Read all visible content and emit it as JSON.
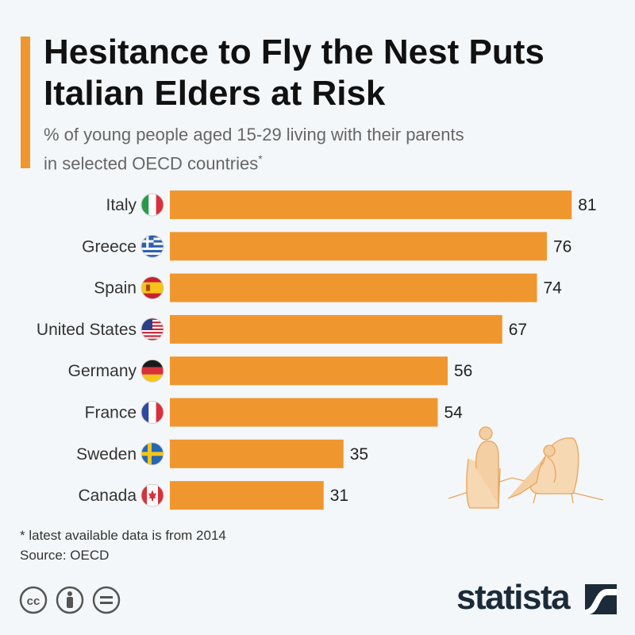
{
  "header": {
    "title_line1": "Hesitance to Fly the Nest Puts",
    "title_line2": "Italian Elders at Risk",
    "subtitle_line1": "% of young people aged 15-29 living with their parents",
    "subtitle_line2": "in selected OECD countries",
    "subtitle_mark": "*"
  },
  "footer": {
    "note": "* latest available data is from 2014",
    "source": "Source: OECD",
    "brand": "statista"
  },
  "colors": {
    "bar": "#f0962e",
    "accent": "#f0962e",
    "text": "#333333",
    "brand": "#1c2b39"
  },
  "chart_data": {
    "type": "bar",
    "orientation": "horizontal",
    "title": "Hesitance to Fly the Nest Puts Italian Elders at Risk",
    "subtitle": "% of young people aged 15-29 living with their parents in selected OECD countries*",
    "categories": [
      "Italy",
      "Greece",
      "Spain",
      "United States",
      "Germany",
      "France",
      "Sweden",
      "Canada"
    ],
    "values": [
      81,
      76,
      74,
      67,
      56,
      54,
      35,
      31
    ],
    "flags": [
      "italy-flag-icon",
      "greece-flag-icon",
      "spain-flag-icon",
      "us-flag-icon",
      "germany-flag-icon",
      "france-flag-icon",
      "sweden-flag-icon",
      "canada-flag-icon"
    ],
    "xlim": [
      0,
      100
    ],
    "xlabel": "",
    "ylabel": "",
    "grid": false,
    "data_labels": true
  }
}
